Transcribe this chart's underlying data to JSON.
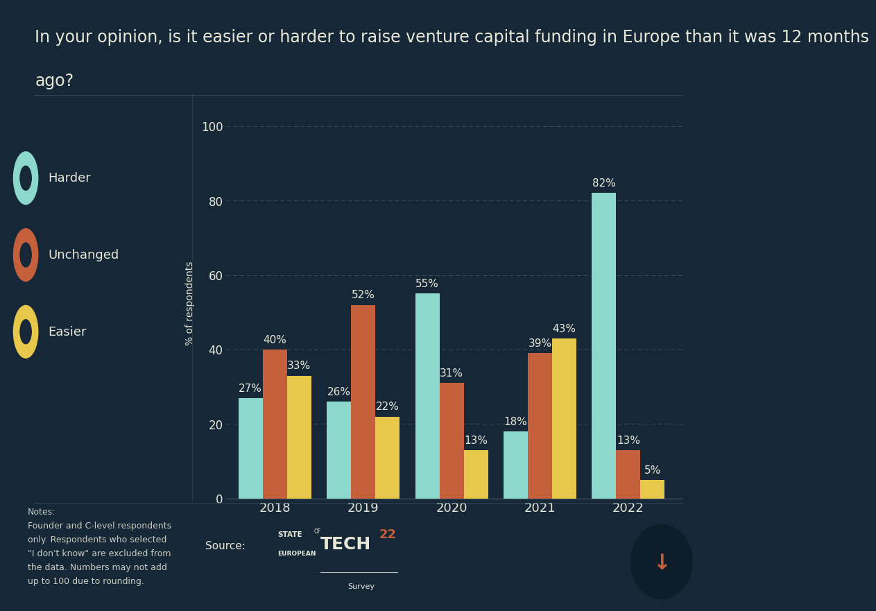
{
  "title_line1": "In your opinion, is it easier or harder to raise venture capital funding in Europe than it was 12 months",
  "title_line2": "ago?",
  "years": [
    "2018",
    "2019",
    "2020",
    "2021",
    "2022"
  ],
  "series": {
    "Harder": [
      27,
      26,
      55,
      18,
      82
    ],
    "Unchanged": [
      40,
      52,
      31,
      39,
      13
    ],
    "Easier": [
      33,
      22,
      13,
      43,
      5
    ]
  },
  "colors": {
    "Harder": "#8dd8cc",
    "Unchanged": "#c4603b",
    "Easier": "#e8c84a"
  },
  "ylabel": "% of respondents",
  "ylim": [
    0,
    105
  ],
  "yticks": [
    0,
    20,
    40,
    60,
    80,
    100
  ],
  "background_color": "#162838",
  "text_color": "#e8e8d8",
  "grid_color": "#3a5060",
  "axis_color": "#3a5060",
  "bar_width": 0.22,
  "title_fontsize": 17,
  "axis_label_fontsize": 10,
  "tick_fontsize": 12,
  "bar_label_fontsize": 11,
  "legend_fontsize": 13,
  "notes_text": "Notes:\nFounder and C-level respondents\nonly. Respondents who selected\n\"I don't know\" are excluded from\nthe data. Numbers may not add\nup to 100 due to rounding.",
  "source_text": "Source:",
  "notes_fontsize": 9,
  "source_fontsize": 11
}
